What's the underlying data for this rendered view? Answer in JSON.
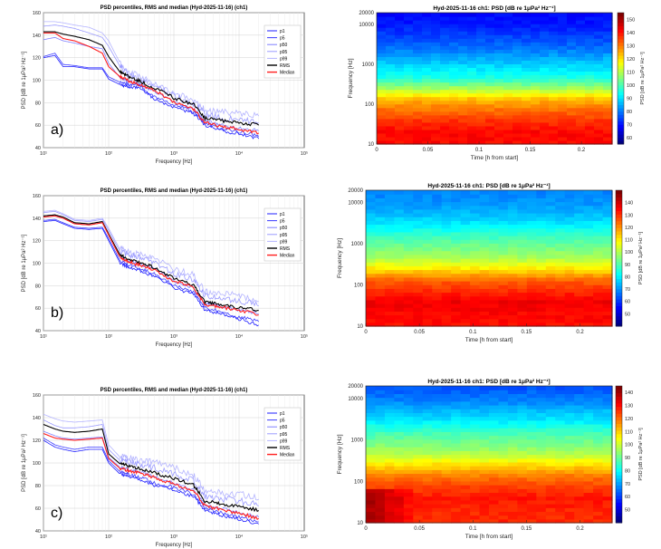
{
  "defs": {
    "title_psd": "PSD percentiles, RMS and median (Hyd-2025-11-16) (ch1)",
    "xlabel_psd": "Frequency [Hz]",
    "ylabel_psd": "PSD [dB re 1μPa² Hz⁻¹]",
    "xlabel_spec": "Time [h from start]",
    "ylabel_spec": "Frequency [Hz]",
    "cbar_label": "PSD [dB re 1μPa² Hz⁻¹]",
    "legend": [
      "p1",
      "p5",
      "p50",
      "p95",
      "p99",
      "RMS",
      "Median"
    ],
    "series_colors": [
      "#1f1fff",
      "#3d3dff",
      "#8080ff",
      "#9b9bff",
      "#b4b4ff",
      "#000000",
      "#ff1e1e"
    ],
    "xticks_psd": [
      "10¹",
      "10²",
      "10³",
      "10⁴",
      "10⁵"
    ],
    "xticks_spec": [
      "0",
      "0.05",
      "0.1",
      "0.15",
      "0.2"
    ]
  },
  "chart_data": [
    {
      "type": "line",
      "label": "a)",
      "title": "PSD percentiles, RMS and median (Hyd-2025-11-16) (ch1)",
      "xlabel": "Frequency [Hz]",
      "xscale": "log",
      "xlim": [
        10,
        100000
      ],
      "ylim": [
        40,
        160
      ],
      "yticks": [
        40,
        60,
        80,
        100,
        120,
        140,
        160
      ],
      "x": [
        10,
        15,
        20,
        30,
        50,
        80,
        100,
        150,
        200,
        300,
        500,
        1000,
        2000,
        3000,
        5000,
        10000,
        20000
      ],
      "series": [
        {
          "name": "p1",
          "values": [
            120,
            122,
            112,
            112,
            110,
            110,
            101,
            96,
            94,
            93,
            83,
            76,
            70,
            60,
            55,
            52,
            48
          ]
        },
        {
          "name": "p5",
          "values": [
            121,
            124,
            114,
            113,
            111,
            111,
            103,
            98,
            96,
            95,
            85,
            78,
            72,
            62,
            57,
            54,
            50
          ]
        },
        {
          "name": "p50",
          "values": [
            136,
            138,
            135,
            133,
            130,
            128,
            115,
            102,
            99,
            97,
            90,
            80,
            74,
            64,
            60,
            57,
            55
          ]
        },
        {
          "name": "p95",
          "values": [
            148,
            149,
            148,
            146,
            142,
            138,
            130,
            112,
            104,
            100,
            94,
            85,
            79,
            69,
            66,
            64,
            62
          ]
        },
        {
          "name": "p99",
          "values": [
            152,
            152,
            151,
            149,
            147,
            142,
            135,
            115,
            107,
            103,
            97,
            88,
            82,
            73,
            71,
            70,
            68
          ]
        },
        {
          "name": "RMS",
          "values": [
            143,
            143,
            141,
            139,
            136,
            131,
            121,
            107,
            103,
            99,
            93,
            84,
            78,
            66,
            64,
            62,
            60
          ]
        },
        {
          "name": "Median",
          "values": [
            142,
            142,
            137,
            135,
            130,
            124,
            112,
            103,
            99,
            96,
            91,
            80,
            74,
            62,
            59,
            56,
            53
          ]
        }
      ]
    },
    {
      "type": "heatmap",
      "label": "a-spec",
      "title": "Hyd-2025-11-16 ch1: PSD [dB re 1μPa² Hz⁻¹]",
      "xlabel": "Time [h from start]",
      "ylabel": "Frequency [Hz]",
      "xlim": [
        0,
        0.23
      ],
      "ylim": [
        10,
        20000
      ],
      "yticks": [
        "10",
        "100",
        "1000",
        "10000",
        "20000"
      ],
      "colorbar": {
        "min": 55,
        "max": 155,
        "ticks": [
          60,
          70,
          80,
          90,
          100,
          110,
          120,
          130,
          140,
          150
        ]
      },
      "profile_db": [
        142,
        142,
        138,
        132,
        125,
        110,
        96,
        90,
        84,
        78,
        74,
        70,
        68
      ]
    },
    {
      "type": "line",
      "label": "b)",
      "title": "PSD percentiles, RMS and median (Hyd-2025-11-16) (ch1)",
      "xlabel": "Frequency [Hz]",
      "xscale": "log",
      "xlim": [
        10,
        100000
      ],
      "ylim": [
        40,
        160
      ],
      "yticks": [
        40,
        60,
        80,
        100,
        120,
        140,
        160
      ],
      "x": [
        10,
        15,
        20,
        30,
        50,
        80,
        100,
        150,
        200,
        300,
        500,
        1000,
        2000,
        3000,
        5000,
        10000,
        20000
      ],
      "series": [
        {
          "name": "p1",
          "values": [
            137,
            138,
            135,
            131,
            130,
            131,
            120,
            100,
            96,
            93,
            88,
            78,
            72,
            58,
            55,
            50,
            45
          ]
        },
        {
          "name": "p5",
          "values": [
            138,
            139,
            136,
            132,
            131,
            132,
            122,
            102,
            98,
            95,
            90,
            80,
            74,
            60,
            57,
            52,
            48
          ]
        },
        {
          "name": "p50",
          "values": [
            142,
            143,
            140,
            135,
            134,
            136,
            125,
            106,
            102,
            99,
            95,
            84,
            78,
            64,
            62,
            58,
            55
          ]
        },
        {
          "name": "p95",
          "values": [
            145,
            146,
            143,
            138,
            137,
            139,
            129,
            110,
            107,
            104,
            101,
            90,
            85,
            70,
            69,
            66,
            62
          ]
        },
        {
          "name": "p99",
          "values": [
            146,
            147,
            144,
            139,
            138,
            140,
            131,
            112,
            109,
            107,
            104,
            94,
            89,
            74,
            73,
            70,
            66
          ]
        },
        {
          "name": "RMS",
          "values": [
            142,
            143,
            141,
            136,
            135,
            137,
            126,
            107,
            103,
            100,
            96,
            86,
            80,
            65,
            63,
            60,
            58
          ]
        },
        {
          "name": "Median",
          "values": [
            141,
            142,
            140,
            135,
            134,
            136,
            125,
            105,
            101,
            98,
            94,
            84,
            78,
            63,
            61,
            58,
            54
          ]
        }
      ]
    },
    {
      "type": "heatmap",
      "label": "b-spec",
      "title": "Hyd-2025-11-16 ch1: PSD [dB re 1μPa² Hz⁻¹]",
      "xlabel": "Time [h from start]",
      "ylabel": "Frequency [Hz]",
      "xlim": [
        0,
        0.23
      ],
      "ylim": [
        10,
        20000
      ],
      "yticks": [
        "10",
        "100",
        "1000",
        "10000",
        "20000"
      ],
      "colorbar": {
        "min": 40,
        "max": 150,
        "ticks": [
          50,
          60,
          70,
          80,
          90,
          100,
          110,
          120,
          130,
          140
        ]
      },
      "profile_db": [
        135,
        136,
        138,
        132,
        126,
        112,
        100,
        94,
        88,
        80,
        74,
        70,
        68
      ]
    },
    {
      "type": "line",
      "label": "c)",
      "title": "PSD percentiles, RMS and median (Hyd-2025-11-16) (ch1)",
      "xlabel": "Frequency [Hz]",
      "xscale": "log",
      "xlim": [
        10,
        100000
      ],
      "ylim": [
        40,
        160
      ],
      "yticks": [
        40,
        60,
        80,
        100,
        120,
        140,
        160
      ],
      "x": [
        10,
        15,
        20,
        30,
        50,
        80,
        100,
        150,
        200,
        300,
        500,
        1000,
        2000,
        3000,
        5000,
        10000,
        20000
      ],
      "series": [
        {
          "name": "p1",
          "values": [
            120,
            114,
            112,
            110,
            112,
            112,
            100,
            90,
            88,
            85,
            80,
            76,
            70,
            58,
            54,
            50,
            46
          ]
        },
        {
          "name": "p5",
          "values": [
            122,
            116,
            114,
            112,
            114,
            114,
            102,
            92,
            90,
            87,
            82,
            78,
            72,
            60,
            56,
            52,
            48
          ]
        },
        {
          "name": "p50",
          "values": [
            128,
            124,
            122,
            121,
            122,
            123,
            105,
            96,
            94,
            92,
            88,
            82,
            76,
            63,
            60,
            56,
            52
          ]
        },
        {
          "name": "p95",
          "values": [
            138,
            133,
            131,
            131,
            132,
            134,
            112,
            102,
            100,
            98,
            95,
            90,
            84,
            70,
            68,
            66,
            62
          ]
        },
        {
          "name": "p99",
          "values": [
            143,
            139,
            137,
            136,
            137,
            138,
            116,
            105,
            104,
            102,
            100,
            95,
            89,
            75,
            73,
            72,
            68
          ]
        },
        {
          "name": "RMS",
          "values": [
            134,
            130,
            128,
            127,
            128,
            130,
            108,
            99,
            97,
            95,
            91,
            86,
            80,
            66,
            64,
            61,
            58
          ]
        },
        {
          "name": "Median",
          "values": [
            126,
            122,
            121,
            120,
            121,
            122,
            104,
            95,
            93,
            91,
            87,
            81,
            75,
            62,
            59,
            55,
            51
          ]
        }
      ]
    },
    {
      "type": "heatmap",
      "label": "c-spec",
      "title": "Hyd-2025-11-16 ch1: PSD [dB re 1μPa² Hz⁻¹]",
      "xlabel": "Time [h from start]",
      "ylabel": "Frequency [Hz]",
      "xlim": [
        0,
        0.23
      ],
      "ylim": [
        10,
        20000
      ],
      "yticks": [
        "10",
        "100",
        "1000",
        "10000",
        "20000"
      ],
      "colorbar": {
        "min": 40,
        "max": 145,
        "ticks": [
          50,
          60,
          70,
          80,
          90,
          100,
          110,
          120,
          130,
          140
        ]
      },
      "profile_db": [
        128,
        128,
        130,
        126,
        120,
        110,
        98,
        92,
        86,
        78,
        72,
        66,
        62
      ]
    }
  ]
}
